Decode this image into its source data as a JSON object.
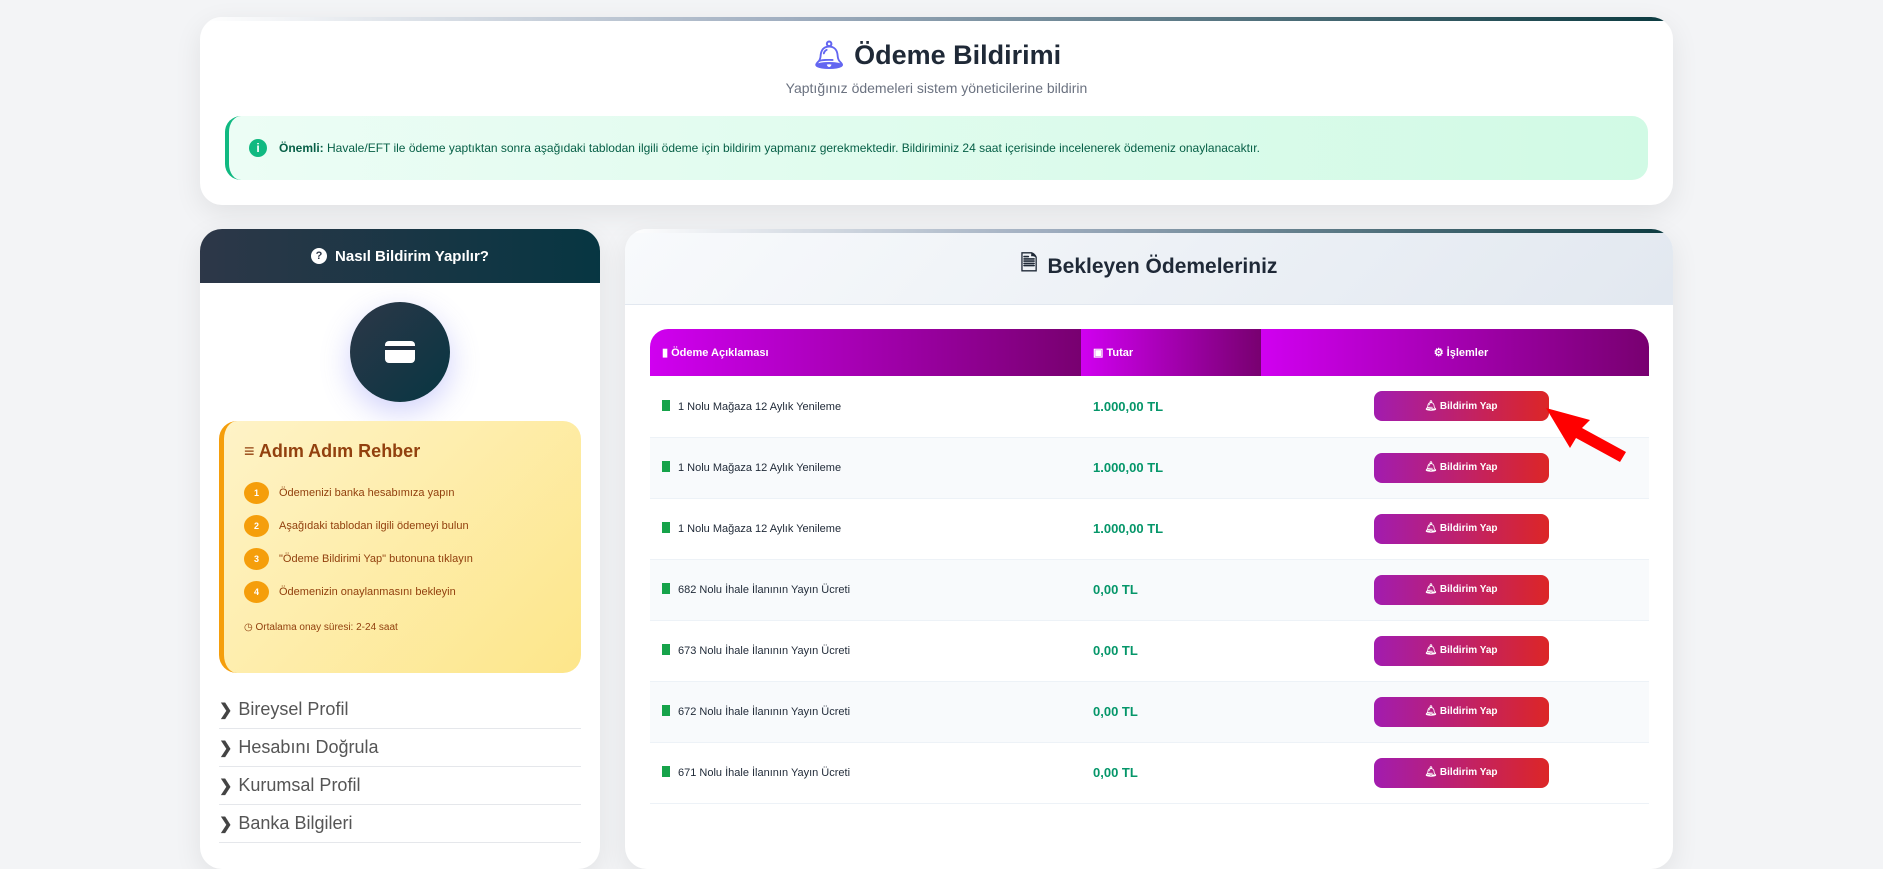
{
  "header": {
    "title": "Ödeme Bildirimi",
    "subtitle": "Yaptığınız ödemeleri sistem yöneticilerine bildirin",
    "alert_strong": "Önemli:",
    "alert_text": " Havale/EFT ile ödeme yaptıktan sonra aşağıdaki tablodan ilgili ödeme için bildirim yapmanız gerekmektedir. Bildiriminiz 24 saat içerisinde incelenerek ödemeniz onaylanacaktır."
  },
  "sidebar": {
    "title": "Nasıl Bildirim Yapılır?",
    "guide_title": "Adım Adım Rehber",
    "steps": [
      {
        "n": "1",
        "text": "Ödemenizi banka hesabımıza yapın"
      },
      {
        "n": "2",
        "text": "Aşağıdaki tablodan ilgili ödemeyi bulun"
      },
      {
        "n": "3",
        "text": "\"Ödeme Bildirimi Yap\" butonuna tıklayın"
      },
      {
        "n": "4",
        "text": "Ödemenizin onaylanmasını bekleyin"
      }
    ],
    "avg": "Ortalama onay süresi: 2-24 saat",
    "nav": [
      "Bireysel Profil",
      "Hesabını Doğrula",
      "Kurumsal Profil",
      "Banka Bilgileri"
    ]
  },
  "main": {
    "title": "Bekleyen Ödemeleriniz",
    "columns": [
      "Ödeme Açıklaması",
      "Tutar",
      "İşlemler"
    ],
    "button_label": "Bildirim Yap",
    "rows": [
      {
        "desc": "1 Nolu Mağaza 12 Aylık Yenileme",
        "amount": "1.000,00 TL"
      },
      {
        "desc": "1 Nolu Mağaza 12 Aylık Yenileme",
        "amount": "1.000,00 TL"
      },
      {
        "desc": "1 Nolu Mağaza 12 Aylık Yenileme",
        "amount": "1.000,00 TL"
      },
      {
        "desc": "682 Nolu İhale İlanının Yayın Ücreti",
        "amount": "0,00 TL"
      },
      {
        "desc": "673 Nolu İhale İlanının Yayın Ücreti",
        "amount": "0,00 TL"
      },
      {
        "desc": "672 Nolu İhale İlanının Yayın Ücreti",
        "amount": "0,00 TL"
      },
      {
        "desc": "671 Nolu İhale İlanının Yayın Ücreti",
        "amount": "0,00 TL"
      }
    ]
  },
  "colors": {
    "accent": "#6366f1",
    "success": "#10b981",
    "table_header": "#c000e0",
    "button": "#dc2626"
  }
}
